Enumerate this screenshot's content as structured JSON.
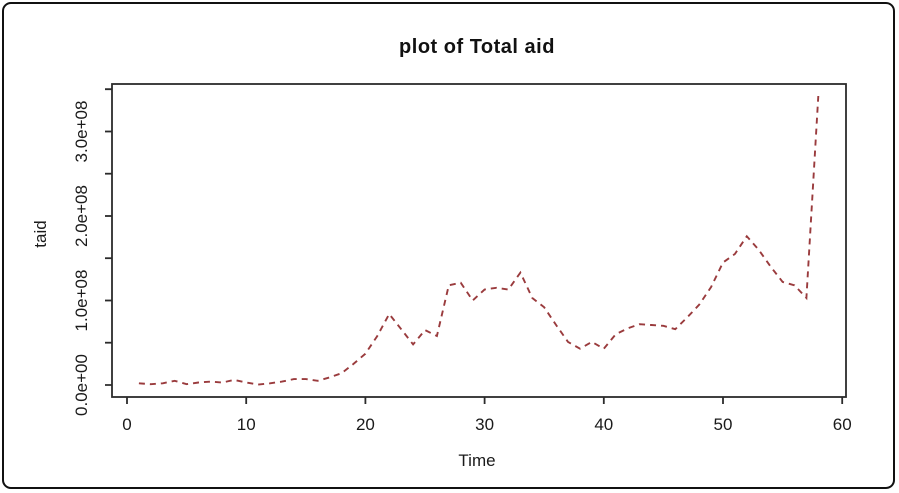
{
  "header": {
    "title": "plot of Total aid"
  },
  "chart_data": {
    "type": "line",
    "title": "plot of Total aid",
    "xlabel": "Time",
    "ylabel": "taid",
    "series_name": "taid",
    "line": {
      "color": "#9a3b3d",
      "style": "dashed",
      "width": 1.9
    },
    "grid": false,
    "legend": null,
    "xlim": [
      -1.26,
      60.32
    ],
    "ylim": [
      -14200000,
      356200000
    ],
    "x_ticks": {
      "values": [
        0,
        10,
        20,
        30,
        40,
        50,
        60
      ],
      "labels": [
        "0",
        "10",
        "20",
        "30",
        "40",
        "50",
        "60"
      ]
    },
    "y_ticks": {
      "values": [
        0,
        50000000,
        100000000,
        150000000,
        200000000,
        250000000,
        300000000,
        350000000
      ],
      "labels": [
        "0.0e+00",
        "",
        "1.0e+08",
        "",
        "2.0e+08",
        "",
        "3.0e+08",
        ""
      ]
    },
    "x": [
      1,
      2,
      3,
      4,
      5,
      6,
      7,
      8,
      9,
      10,
      11,
      12,
      13,
      14,
      15,
      16,
      17,
      18,
      19,
      20,
      21,
      22,
      23,
      24,
      25,
      26,
      27,
      28,
      29,
      30,
      31,
      32,
      33,
      34,
      35,
      36,
      37,
      38,
      39,
      40,
      41,
      42,
      43,
      44,
      45,
      46,
      47,
      48,
      49,
      50,
      51,
      52,
      53,
      54,
      55,
      56,
      57,
      58
    ],
    "values": [
      2000000,
      1000000,
      2000000,
      5000000,
      1000000,
      3000000,
      4000000,
      3000000,
      6000000,
      3000000,
      500000,
      2000000,
      4000000,
      7000000,
      7000000,
      5000000,
      9000000,
      14000000,
      25000000,
      37000000,
      58000000,
      84000000,
      66000000,
      48000000,
      65000000,
      58000000,
      118000000,
      121000000,
      100000000,
      113000000,
      115000000,
      113000000,
      133000000,
      103000000,
      92000000,
      71000000,
      51000000,
      43000000,
      51000000,
      43000000,
      60000000,
      67000000,
      72000000,
      71000000,
      70000000,
      66000000,
      80000000,
      95000000,
      116000000,
      145000000,
      155000000,
      176000000,
      160000000,
      140000000,
      122000000,
      118000000,
      103000000,
      342000000
    ]
  }
}
